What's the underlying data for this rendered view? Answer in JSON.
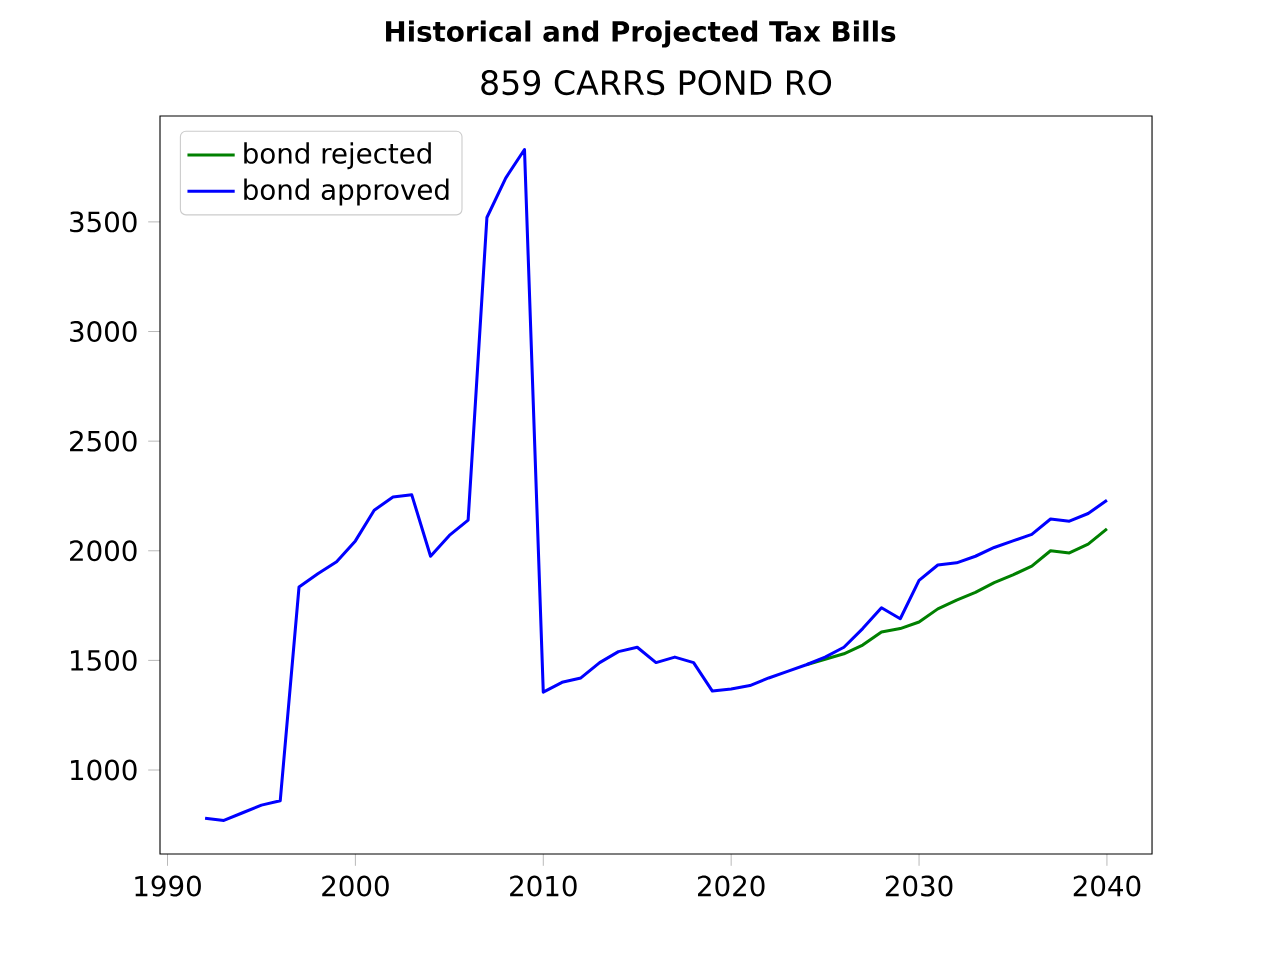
{
  "chart_data": {
    "type": "line",
    "title": "Historical and Projected Tax Bills",
    "subtitle": "859 CARRS POND RO",
    "x": [
      1992,
      1993,
      1994,
      1995,
      1996,
      1997,
      1998,
      1999,
      2000,
      2001,
      2002,
      2003,
      2004,
      2005,
      2006,
      2007,
      2008,
      2009,
      2010,
      2011,
      2012,
      2013,
      2014,
      2015,
      2016,
      2017,
      2018,
      2019,
      2020,
      2021,
      2022,
      2023,
      2024,
      2025,
      2026,
      2027,
      2028,
      2029,
      2030,
      2031,
      2032,
      2033,
      2034,
      2035,
      2036,
      2037,
      2038,
      2039,
      2040
    ],
    "series": [
      {
        "name": "bond rejected",
        "color": "#008000",
        "values": [
          null,
          null,
          null,
          null,
          null,
          null,
          null,
          null,
          null,
          null,
          null,
          null,
          null,
          null,
          null,
          null,
          null,
          null,
          null,
          null,
          null,
          null,
          null,
          null,
          null,
          null,
          null,
          null,
          null,
          null,
          null,
          null,
          1480,
          1505,
          1530,
          1570,
          1630,
          1645,
          1675,
          1735,
          1775,
          1810,
          1855,
          1890,
          1930,
          2000,
          1990,
          2030,
          2100
        ]
      },
      {
        "name": "bond approved",
        "color": "#0000ff",
        "values": [
          780,
          770,
          805,
          840,
          860,
          1835,
          1895,
          1950,
          2045,
          2185,
          2245,
          2255,
          1975,
          2070,
          2140,
          3520,
          3700,
          3830,
          1355,
          1400,
          1420,
          1490,
          1540,
          1560,
          1490,
          1515,
          1490,
          1360,
          1370,
          1385,
          1420,
          1450,
          1480,
          1515,
          1560,
          1645,
          1740,
          1690,
          1865,
          1935,
          1945,
          1975,
          2015,
          2045,
          2075,
          2145,
          2135,
          2170,
          2230
        ]
      }
    ],
    "xlim": [
      1989.6,
      2042.4
    ],
    "ylim": [
      617,
      3983
    ],
    "xticks": [
      1990,
      2000,
      2010,
      2020,
      2030,
      2040
    ],
    "yticks": [
      1000,
      1500,
      2000,
      2500,
      3000,
      3500
    ],
    "legend": "top left",
    "grid": false
  }
}
